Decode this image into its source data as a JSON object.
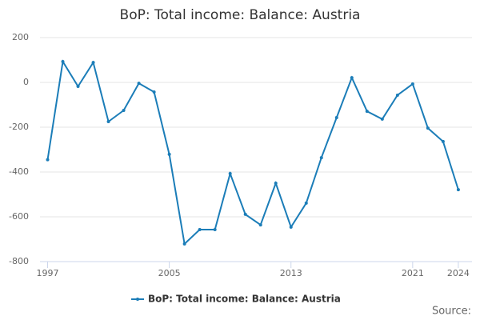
{
  "chart_data": {
    "type": "line",
    "title": "BoP: Total income: Balance: Austria",
    "x": [
      1997,
      1998,
      1999,
      2000,
      2001,
      2002,
      2003,
      2004,
      2005,
      2006,
      2007,
      2008,
      2009,
      2010,
      2011,
      2012,
      2013,
      2014,
      2015,
      2016,
      2017,
      2018,
      2019,
      2020,
      2021,
      2022,
      2023,
      2024
    ],
    "series": [
      {
        "name": "BoP: Total income: Balance: Austria",
        "color": "#1b7db8",
        "values": [
          -345,
          93,
          -18,
          89,
          -175,
          -125,
          -4,
          -43,
          -321,
          -721,
          -657,
          -657,
          -407,
          -589,
          -636,
          -450,
          -646,
          -539,
          -336,
          -157,
          21,
          -129,
          -164,
          -57,
          -7,
          -204,
          -264,
          -479
        ]
      }
    ],
    "xlim": [
      1996.5,
      2024.9
    ],
    "xticks": [
      1997,
      2005,
      2013,
      2021,
      2024
    ],
    "ylim": [
      -800,
      200
    ],
    "yticks": [
      -800,
      -600,
      -400,
      -200,
      0,
      200
    ],
    "grid": true,
    "source": "Source:"
  }
}
